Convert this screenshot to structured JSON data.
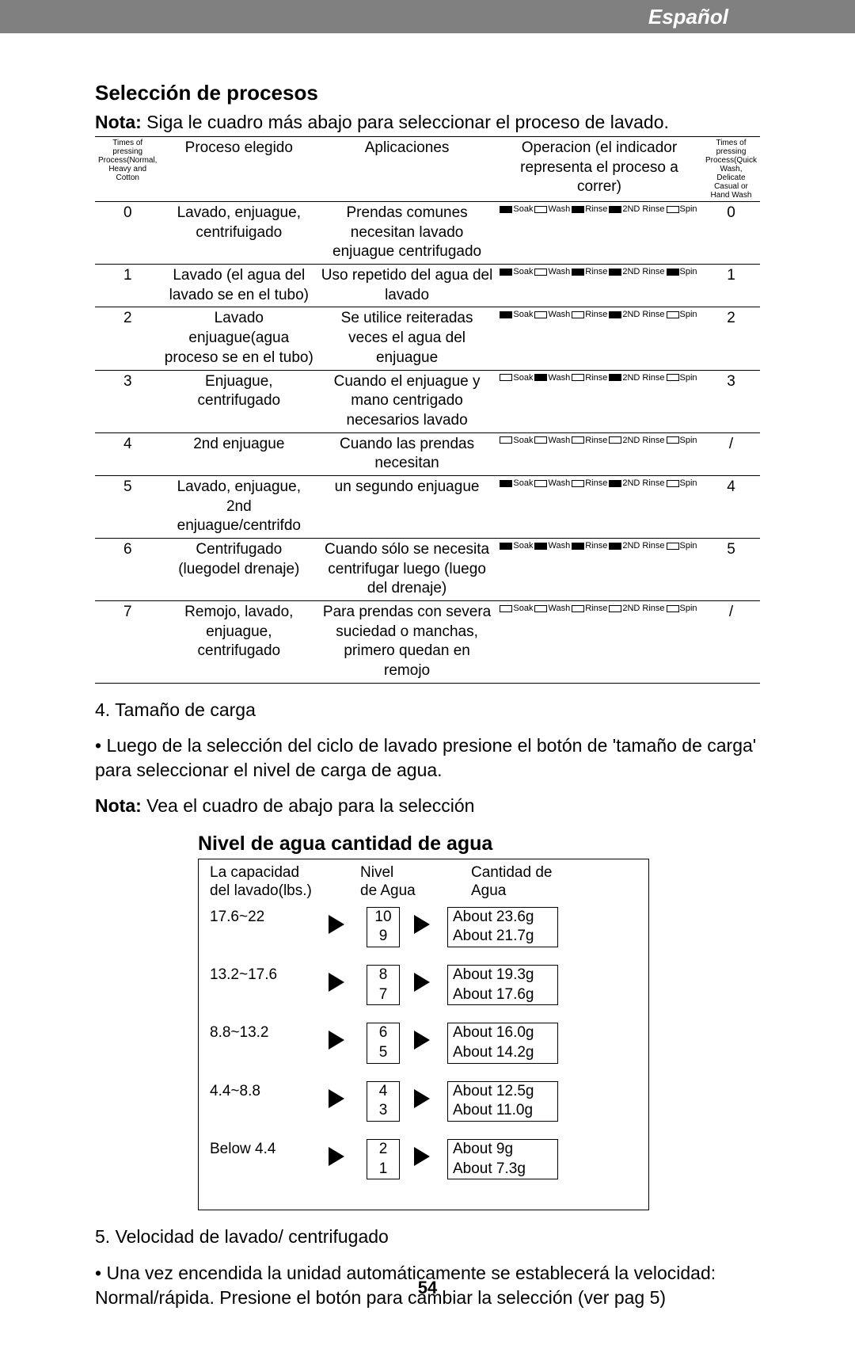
{
  "header": {
    "language": "Español"
  },
  "section1": {
    "title": "Selección de procesos",
    "nota_label": "Nota:",
    "nota_text": "Siga le cuadro más abajo para seleccionar el proceso de lavado.",
    "table": {
      "head": {
        "col1": "Times of pressing Process(Normal, Heavy and Cotton",
        "col2": "Proceso elegido",
        "col3": "Aplicaciones",
        "col4a": "Operacion (el indicador",
        "col4b": "representa el proceso a correr)",
        "col5": "Times of pressing Process(Quick Wash, Delicate Casual or Hand Wash"
      },
      "rows": [
        {
          "n": "0",
          "proc": "Lavado, enjuague, centrifuigado",
          "app": "Prendas comunes necesitan lavado enjuague centrifugado",
          "ind": [
            "f",
            "e",
            "f",
            "f",
            "e"
          ],
          "r": "0"
        },
        {
          "n": "1",
          "proc": "Lavado (el agua del lavado se en el tubo)",
          "app": "Uso repetido del agua del lavado",
          "ind": [
            "f",
            "e",
            "f",
            "f",
            "f"
          ],
          "r": "1"
        },
        {
          "n": "2",
          "proc": "Lavado enjuague(agua proceso se en el tubo)",
          "app": "Se utilice reiteradas veces el agua del enjuague",
          "ind": [
            "f",
            "e",
            "e",
            "f",
            "e"
          ],
          "r": "2"
        },
        {
          "n": "3",
          "proc": "Enjuague, centrifugado",
          "app": "Cuando el enjuague y mano centrigado necesarios lavado",
          "ind": [
            "e",
            "f",
            "e",
            "f",
            "e"
          ],
          "r": "3"
        },
        {
          "n": "4",
          "proc": "2nd enjuague",
          "app": "Cuando las prendas necesitan",
          "ind": [
            "e",
            "e",
            "e",
            "e",
            "e"
          ],
          "r": "/"
        },
        {
          "n": "5",
          "proc": "Lavado, enjuague, 2nd enjuague/centrifdo",
          "app": "un segundo enjuague",
          "ind": [
            "f",
            "e",
            "e",
            "f",
            "e"
          ],
          "r": "4"
        },
        {
          "n": "6",
          "proc": "Centrifugado (luegodel drenaje)",
          "app": "Cuando sólo se necesita centrifugar luego (luego del drenaje)",
          "ind": [
            "f",
            "f",
            "f",
            "f",
            "e"
          ],
          "r": "5"
        },
        {
          "n": "7",
          "proc": "Remojo, lavado, enjuague, centrifugado",
          "app": "Para prendas con severa suciedad o manchas, primero quedan en remojo",
          "ind": [
            "e",
            "e",
            "e",
            "e",
            "e"
          ],
          "r": "/"
        }
      ],
      "ind_labels": [
        "Soak",
        "Wash",
        "Rinse",
        "2ND Rinse",
        "Spin"
      ]
    }
  },
  "body": {
    "p1": "4. Tamaño de carga",
    "p2": "• Luego de la selección del ciclo de lavado presione el botón de 'tamaño de carga' para seleccionar el nivel de carga de agua.",
    "p3_bold": "Nota:",
    "p3_rest": " Vea el cuadro de abajo para la selección"
  },
  "section2": {
    "title": "Nivel de agua  cantidad de agua",
    "head": {
      "c1a": "La capacidad",
      "c1b": "del lavado(lbs.)",
      "c2a": "Nivel",
      "c2b": "de Agua",
      "c3a": "Cantidad de",
      "c3b": "Agua"
    },
    "rows": [
      {
        "cap": "17.6~22",
        "lvl": [
          "10",
          "9"
        ],
        "amt": [
          "About 23.6g",
          "About 21.7g"
        ]
      },
      {
        "cap": "13.2~17.6",
        "lvl": [
          "8",
          "7"
        ],
        "amt": [
          "About 19.3g",
          "About 17.6g"
        ]
      },
      {
        "cap": "8.8~13.2",
        "lvl": [
          "6",
          "5"
        ],
        "amt": [
          "About 16.0g",
          "About 14.2g"
        ]
      },
      {
        "cap": "4.4~8.8",
        "lvl": [
          "4",
          "3"
        ],
        "amt": [
          "About 12.5g",
          "About 11.0g"
        ]
      },
      {
        "cap": "Below 4.4",
        "lvl": [
          "2",
          "1"
        ],
        "amt": [
          "About 9g",
          "About 7.3g"
        ]
      }
    ]
  },
  "body2": {
    "p1": "5. Velocidad de lavado/ centrifugado",
    "p2": "• Una vez encendida la unidad automáticamente se establecerá la velocidad: Normal/rápida. Presione el botón para cambiar la selección (ver pag 5)"
  },
  "page_number": "54"
}
